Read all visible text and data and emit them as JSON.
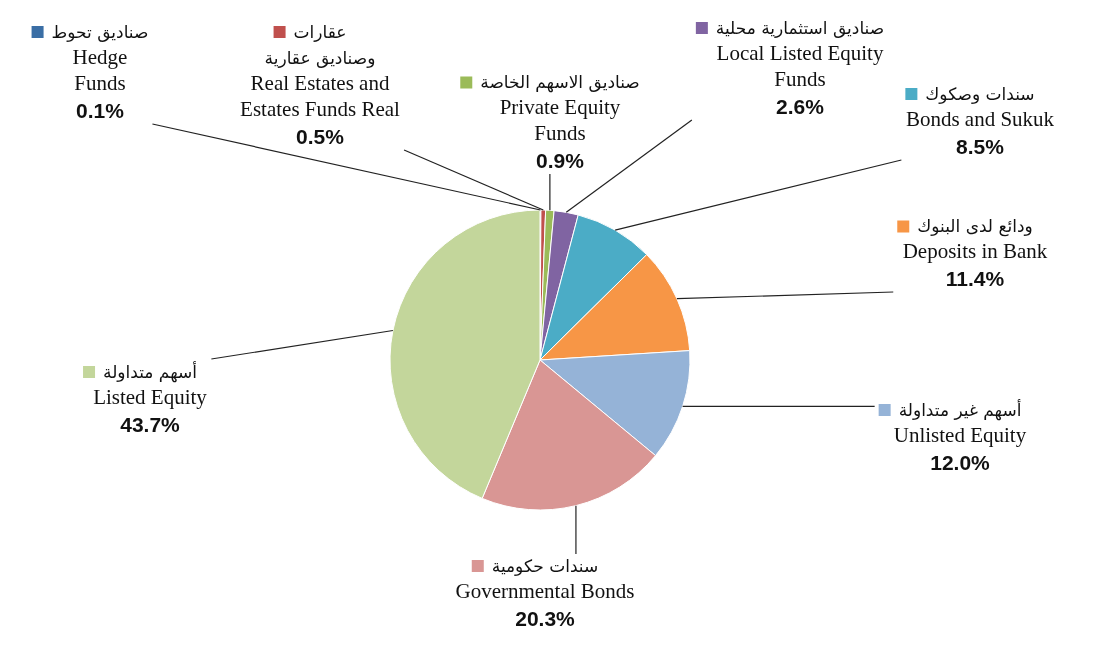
{
  "chart_data": {
    "type": "pie",
    "categories": [
      "صناديق تحوط\nHedge\nFunds",
      "عقارات\nوصناديق عقارية\nReal Estates and\nEstates Funds Real",
      "صناديق الاسهم الخاصة\nPrivate Equity\nFunds",
      "صناديق استثمارية محلية\nLocal Listed Equity\nFunds",
      "سندات وصكوك\nBonds and Sukuk",
      "ودائع لدى البنوك\nDeposits in Bank",
      "أسهم غير متداولة\nUnlisted Equity",
      "سندات حكومية\nGovernmental Bonds",
      "أسهم متداولة\nListed Equity"
    ],
    "values": [
      0.1,
      0.5,
      0.9,
      2.6,
      8.5,
      11.4,
      12.0,
      20.3,
      43.7
    ],
    "colors": [
      "#3a6ea5",
      "#c0504d",
      "#9bbb59",
      "#8064a2",
      "#4bacc6",
      "#f79646",
      "#95b3d7",
      "#d99694",
      "#c3d69b"
    ],
    "legend": "top",
    "value_labels": [
      "0.1%",
      "0.5%",
      "0.9%",
      "2.6%",
      "8.5%",
      "11.4%",
      "12.0%",
      "20.3%",
      "43.7%"
    ]
  }
}
